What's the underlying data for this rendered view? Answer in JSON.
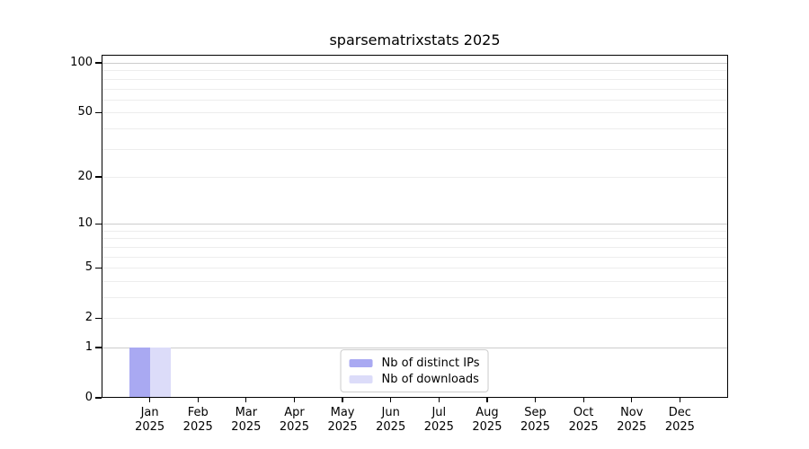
{
  "figure": {
    "title": "sparsematrixstats 2025"
  },
  "chart_data": {
    "type": "bar",
    "title": "sparsematrixstats 2025",
    "xlabel": "",
    "ylabel": "",
    "categories": [
      "Jan 2025",
      "Feb 2025",
      "Mar 2025",
      "Apr 2025",
      "May 2025",
      "Jun 2025",
      "Jul 2025",
      "Aug 2025",
      "Sep 2025",
      "Oct 2025",
      "Nov 2025",
      "Dec 2025"
    ],
    "x_tick_labels": [
      {
        "month": "Jan",
        "year": "2025"
      },
      {
        "month": "Feb",
        "year": "2025"
      },
      {
        "month": "Mar",
        "year": "2025"
      },
      {
        "month": "Apr",
        "year": "2025"
      },
      {
        "month": "May",
        "year": "2025"
      },
      {
        "month": "Jun",
        "year": "2025"
      },
      {
        "month": "Jul",
        "year": "2025"
      },
      {
        "month": "Aug",
        "year": "2025"
      },
      {
        "month": "Sep",
        "year": "2025"
      },
      {
        "month": "Oct",
        "year": "2025"
      },
      {
        "month": "Nov",
        "year": "2025"
      },
      {
        "month": "Dec",
        "year": "2025"
      }
    ],
    "series": [
      {
        "id": "distinct-ips",
        "name": "Nb of distinct IPs",
        "color": "#a9a9f2",
        "values": [
          1,
          0,
          0,
          0,
          0,
          0,
          0,
          0,
          0,
          0,
          0,
          0
        ]
      },
      {
        "id": "downloads",
        "name": "Nb of downloads",
        "color": "#dcdcf9",
        "values": [
          1,
          0,
          0,
          0,
          0,
          0,
          0,
          0,
          0,
          0,
          0,
          0
        ]
      }
    ],
    "yscale": "log1p",
    "ylim": [
      0,
      112
    ],
    "y_ticks": [
      "0",
      "1",
      "2",
      "5",
      "10",
      "20",
      "50",
      "100"
    ],
    "y_tick_values": [
      0,
      1,
      2,
      5,
      10,
      20,
      50,
      100
    ],
    "gridlines": {
      "major": [
        1,
        10,
        100
      ],
      "minor": [
        2,
        3,
        4,
        5,
        6,
        7,
        8,
        9,
        20,
        30,
        40,
        50,
        60,
        70,
        80,
        90
      ]
    },
    "grid": true,
    "legend": {
      "position": "lower center",
      "entries": [
        "Nb of distinct IPs",
        "Nb of downloads"
      ]
    }
  }
}
